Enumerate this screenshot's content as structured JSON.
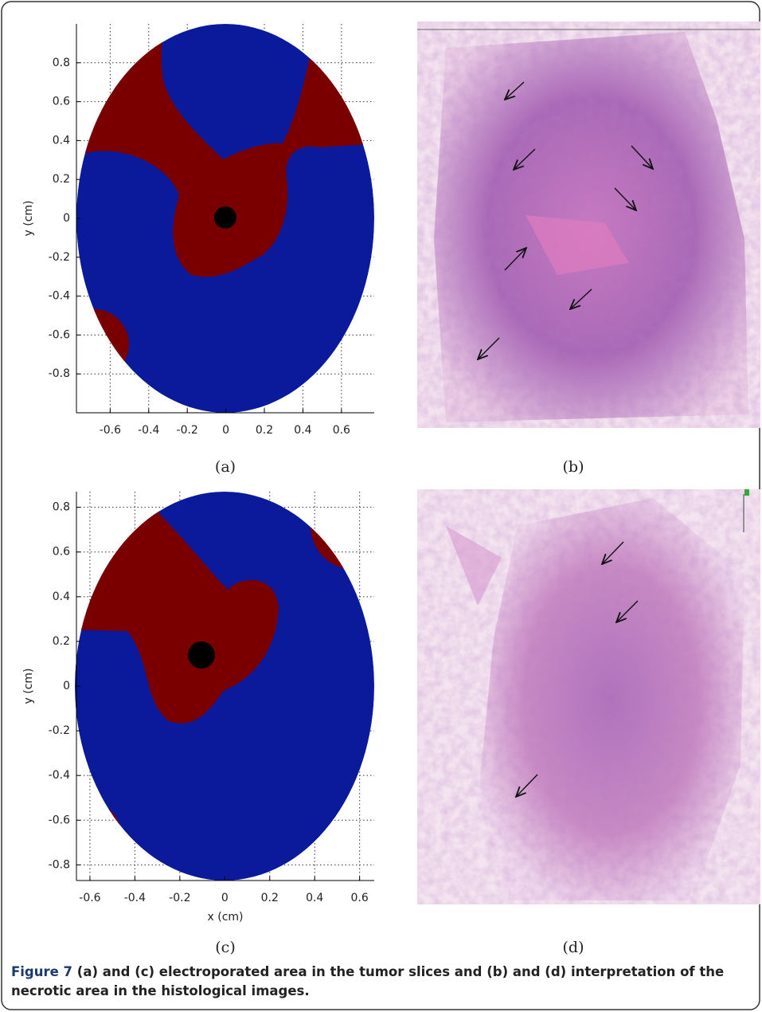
{
  "figure": {
    "panels": [
      {
        "label": "(a)",
        "plot": {
          "ylabel": "y (cm)",
          "xlim": [
            -0.775,
            0.77
          ],
          "ylim": [
            -1.0,
            1.0
          ],
          "xticks": [
            -0.6,
            -0.4,
            -0.2,
            0,
            0.2,
            0.4,
            0.6
          ],
          "yticks": [
            -0.8,
            -0.6,
            -0.4,
            -0.2,
            0,
            0.2,
            0.4,
            0.6,
            0.8
          ],
          "grid": true
        }
      },
      {
        "label": "(b)"
      },
      {
        "label": "(c)",
        "plot": {
          "ylabel": "y (cm)",
          "xlabel": "x (cm)",
          "xlim": [
            -0.66,
            0.665
          ],
          "ylim": [
            -0.87,
            0.87
          ],
          "xticks": [
            -0.6,
            -0.4,
            -0.2,
            0,
            0.2,
            0.4,
            0.6
          ],
          "yticks": [
            -0.8,
            -0.6,
            -0.4,
            -0.2,
            0,
            0.2,
            0.4,
            0.6,
            0.8
          ],
          "grid": true
        }
      },
      {
        "label": "(d)"
      }
    ],
    "caption": {
      "label": "Figure 7",
      "text": " (a) and (c) electroporated area in the tumor slices and (b) and (d) interpretation of the necrotic area in the histological images."
    }
  }
}
